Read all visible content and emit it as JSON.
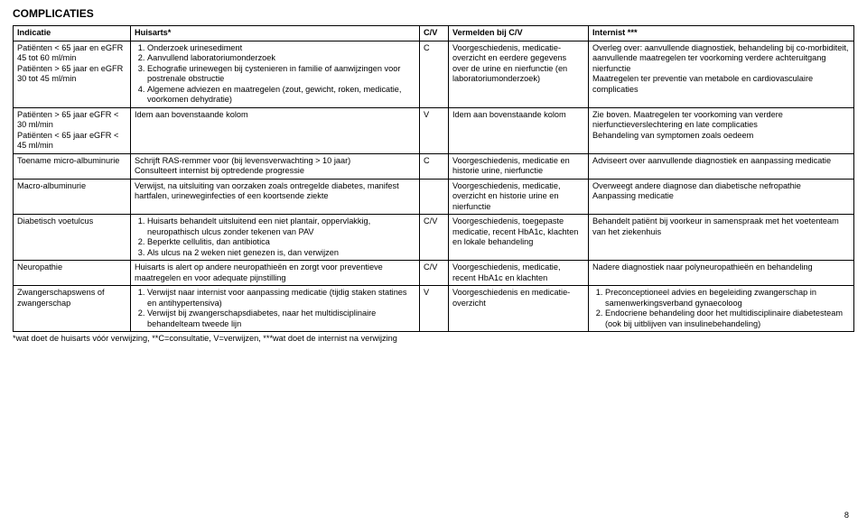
{
  "title": "COMPLICATIES",
  "headers": {
    "indicatie": "Indicatie",
    "huisarts": "Huisarts*",
    "cv": "C/V",
    "vermelden": "Vermelden bij C/V",
    "internist": "Internist ***"
  },
  "rows": [
    {
      "indicatie": "Patiënten < 65 jaar en eGFR 45 tot 60 ml/min\nPatiënten > 65 jaar en eGFR 30 tot 45 ml/min",
      "huisarts_list": [
        "Onderzoek urinesediment",
        "Aanvullend laboratoriumonderzoek",
        "Echografie urinewegen bij cystenieren in familie of aanwijzingen voor postrenale obstructie",
        "Algemene adviezen en maatregelen (zout, gewicht, roken, medicatie, voorkomen dehydratie)"
      ],
      "cv": "C",
      "vermelden": "Voorgeschiedenis, medicatie-overzicht en eerdere gegevens over de urine en nierfunctie (en laboratoriumonderzoek)",
      "internist": "Overleg over: aanvullende diagnostiek, behandeling bij co-morbiditeit, aanvullende maatregelen ter voorkoming verdere achteruitgang nierfunctie\nMaatregelen ter preventie van metabole en cardiovasculaire complicaties"
    },
    {
      "indicatie": "Patiënten > 65 jaar eGFR < 30 ml/min\nPatiënten < 65 jaar eGFR < 45 ml/min",
      "huisarts": "Idem aan bovenstaande kolom",
      "cv": "V",
      "vermelden": "Idem aan bovenstaande kolom",
      "internist": "Zie boven. Maatregelen ter voorkoming van verdere nierfunctieverslechtering en late complicaties\nBehandeling van symptomen zoals oedeem"
    },
    {
      "indicatie": "Toename micro-albuminurie",
      "huisarts": "Schrijft RAS-remmer voor (bij levensverwachting > 10 jaar)\nConsulteert internist bij optredende progressie",
      "cv": "C",
      "vermelden": "Voorgeschiedenis, medicatie en historie urine, nierfunctie",
      "internist": "Adviseert over aanvullende diagnostiek en aanpassing medicatie"
    },
    {
      "indicatie": "Macro-albuminurie",
      "huisarts": "Verwijst, na uitsluiting van oorzaken zoals ontregelde diabetes, manifest hartfalen, urineweginfecties of een koortsende ziekte",
      "cv": "",
      "vermelden": "Voorgeschiedenis, medicatie, overzicht en historie urine en nierfunctie",
      "internist": "Overweegt andere diagnose dan diabetische nefropathie\nAanpassing medicatie"
    },
    {
      "indicatie": "Diabetisch voetulcus",
      "huisarts_list": [
        "Huisarts behandelt uitsluitend een niet plantair, oppervlakkig, neuropathisch ulcus zonder tekenen van PAV",
        "Beperkte cellulitis, dan antibiotica",
        "Als ulcus na 2 weken niet genezen is, dan verwijzen"
      ],
      "cv": "C/V",
      "vermelden": "Voorgeschiedenis, toegepaste medicatie, recent HbA1c, klachten en lokale behandeling",
      "internist": "Behandelt patiënt bij voorkeur in samenspraak met het voetenteam van het ziekenhuis"
    },
    {
      "indicatie": "Neuropathie",
      "huisarts": "Huisarts is alert op andere neuropathieën en zorgt voor preventieve maatregelen en voor adequate pijnstilling",
      "cv": "C/V",
      "vermelden": "Voorgeschiedenis, medicatie, recent HbA1c en klachten",
      "internist": "Nadere diagnostiek naar polyneuropathieën en behandeling"
    },
    {
      "indicatie": "Zwangerschapswens of zwangerschap",
      "huisarts_list": [
        "Verwijst naar internist voor aanpassing medicatie (tijdig staken statines en antihypertensiva)",
        "Verwijst bij zwangerschapsdiabetes, naar het multidisciplinaire behandelteam tweede lijn"
      ],
      "cv": "V",
      "vermelden": "Voorgeschiedenis en medicatie-overzicht",
      "internist_list": [
        "Preconceptioneel advies en begeleiding zwangerschap in samenwerkingsverband gynaecoloog",
        "Endocriene behandeling door het multidisciplinaire diabetesteam (ook bij uitblijven van insulinebehandeling)"
      ]
    }
  ],
  "footnote": "*wat doet de huisarts vóór verwijzing,  **C=consultatie, V=verwijzen, ***wat doet de internist na verwijzing",
  "pagenum": "8"
}
